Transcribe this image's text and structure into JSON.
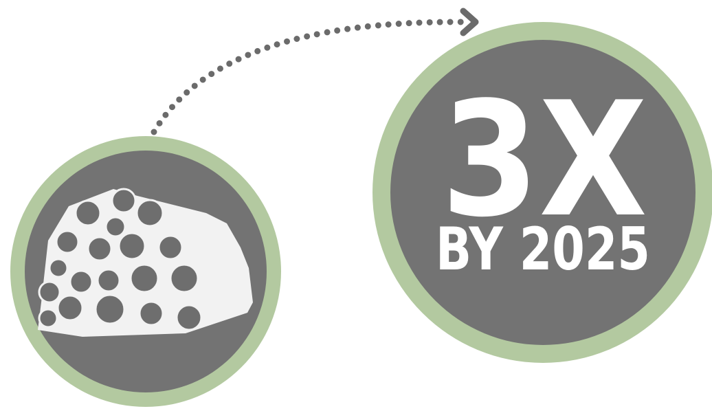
{
  "headline": "3X",
  "subtitle": "BY 2025"
}
